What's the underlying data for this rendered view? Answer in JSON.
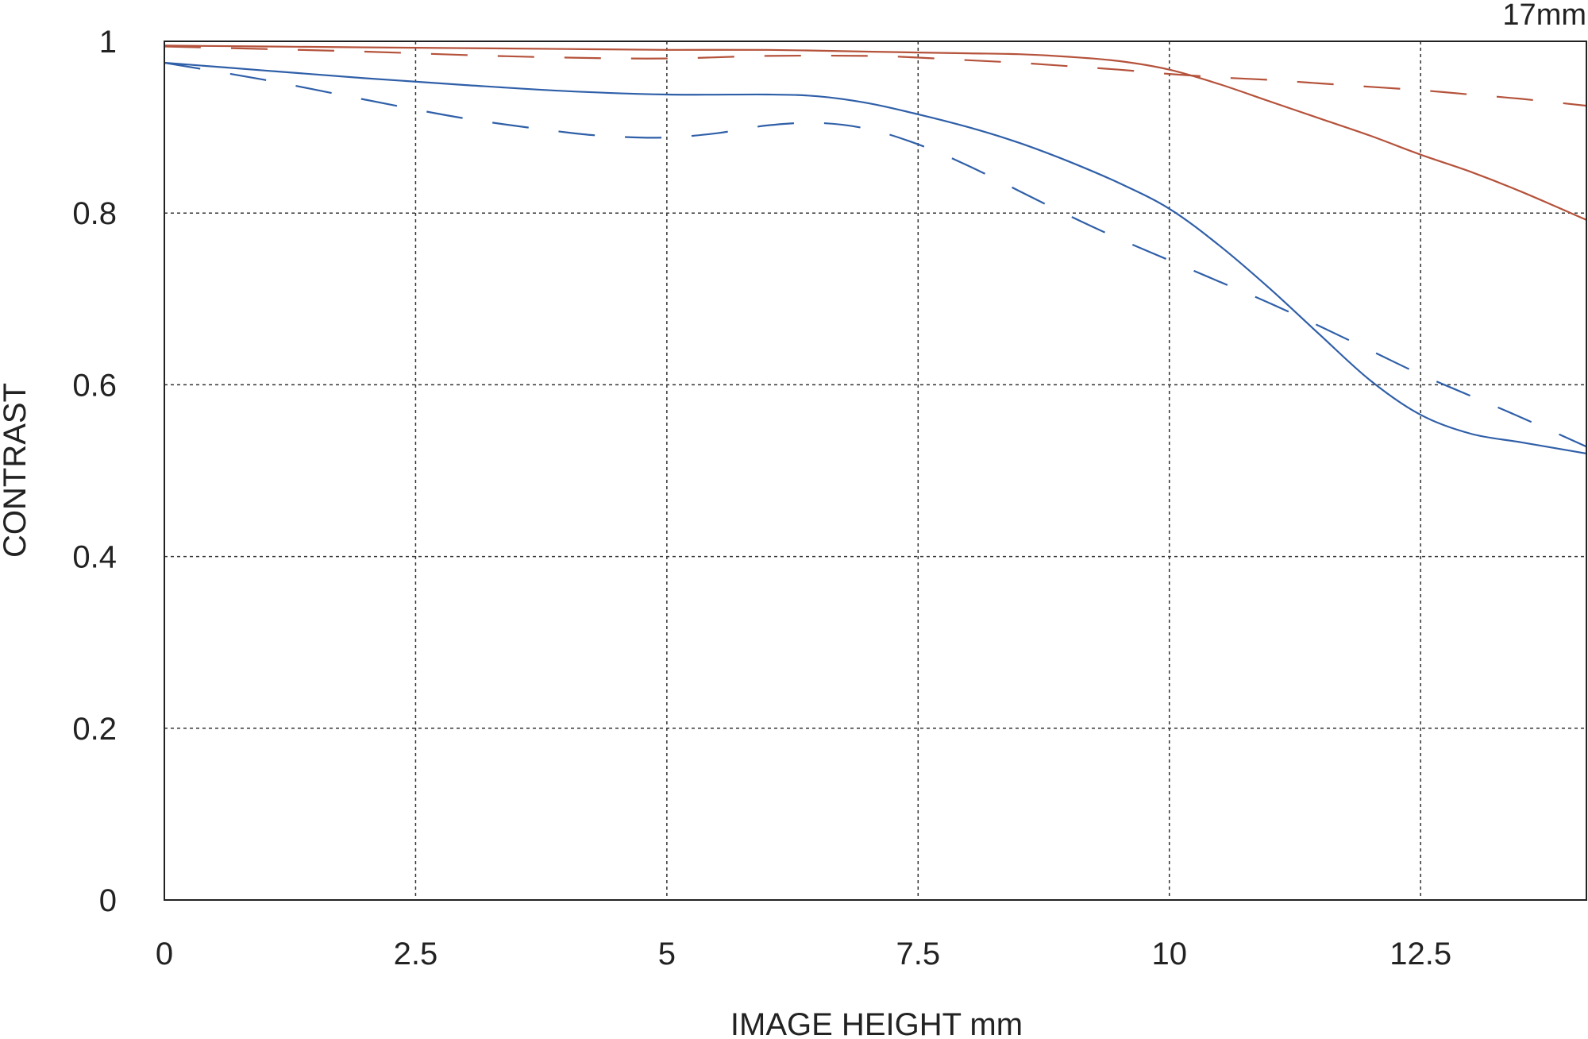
{
  "chart_data": {
    "type": "line",
    "title": "",
    "corner_label": "17mm",
    "xlabel": "IMAGE HEIGHT  mm",
    "ylabel": "CONTRAST",
    "xlim": [
      0,
      14.15
    ],
    "ylim": [
      0,
      1
    ],
    "xticks": [
      0,
      2.5,
      5,
      7.5,
      10,
      12.5
    ],
    "xtick_labels": [
      "0",
      "2.5",
      "5",
      "7.5",
      "10",
      "12.5"
    ],
    "yticks": [
      0,
      0.2,
      0.4,
      0.6,
      0.8,
      1
    ],
    "ytick_labels": [
      "0",
      "0.2",
      "0.4",
      "0.6",
      "0.8",
      "1"
    ],
    "grid": true,
    "legend": "none",
    "series": [
      {
        "color": "#b5523b",
        "dash": "solid",
        "x": [
          0,
          1,
          2,
          3,
          4,
          5,
          6,
          7,
          7.5,
          8,
          8.5,
          9,
          9.5,
          10,
          10.5,
          11,
          11.5,
          12,
          12.5,
          13,
          13.5,
          14.15
        ],
        "y": [
          0.995,
          0.994,
          0.993,
          0.992,
          0.991,
          0.99,
          0.99,
          0.988,
          0.987,
          0.986,
          0.985,
          0.982,
          0.977,
          0.967,
          0.95,
          0.93,
          0.91,
          0.89,
          0.868,
          0.848,
          0.825,
          0.792
        ]
      },
      {
        "color": "#b5523b",
        "dash": "dashed",
        "x": [
          0,
          1,
          2,
          3,
          4,
          5,
          6,
          7,
          7.5,
          8,
          8.5,
          9,
          9.5,
          10,
          10.5,
          11,
          11.5,
          12,
          12.5,
          13,
          13.5,
          14.15
        ],
        "y": [
          0.994,
          0.991,
          0.988,
          0.984,
          0.981,
          0.98,
          0.983,
          0.983,
          0.981,
          0.978,
          0.975,
          0.971,
          0.967,
          0.962,
          0.958,
          0.955,
          0.951,
          0.947,
          0.943,
          0.938,
          0.933,
          0.925
        ]
      },
      {
        "color": "#2f5fa8",
        "dash": "solid",
        "x": [
          0,
          1,
          2,
          3,
          4,
          5,
          6,
          6.5,
          7,
          7.5,
          8,
          8.5,
          9,
          9.5,
          10,
          10.5,
          11,
          11.5,
          12,
          12.5,
          13,
          13.5,
          14.15
        ],
        "y": [
          0.975,
          0.966,
          0.957,
          0.949,
          0.942,
          0.938,
          0.938,
          0.936,
          0.928,
          0.915,
          0.9,
          0.882,
          0.86,
          0.835,
          0.805,
          0.762,
          0.712,
          0.658,
          0.605,
          0.565,
          0.543,
          0.533,
          0.52
        ]
      },
      {
        "color": "#2f5fa8",
        "dash": "dashed",
        "x": [
          0,
          1,
          2,
          3,
          4,
          4.5,
          5,
          5.5,
          6,
          6.5,
          7,
          7.5,
          8,
          8.5,
          9,
          9.5,
          10,
          10.5,
          11,
          11.5,
          12,
          12.5,
          13,
          13.5,
          14.15
        ],
        "y": [
          0.975,
          0.955,
          0.932,
          0.91,
          0.894,
          0.889,
          0.888,
          0.893,
          0.902,
          0.905,
          0.898,
          0.88,
          0.855,
          0.826,
          0.797,
          0.77,
          0.745,
          0.72,
          0.695,
          0.668,
          0.64,
          0.612,
          0.587,
          0.562,
          0.528
        ]
      }
    ]
  }
}
